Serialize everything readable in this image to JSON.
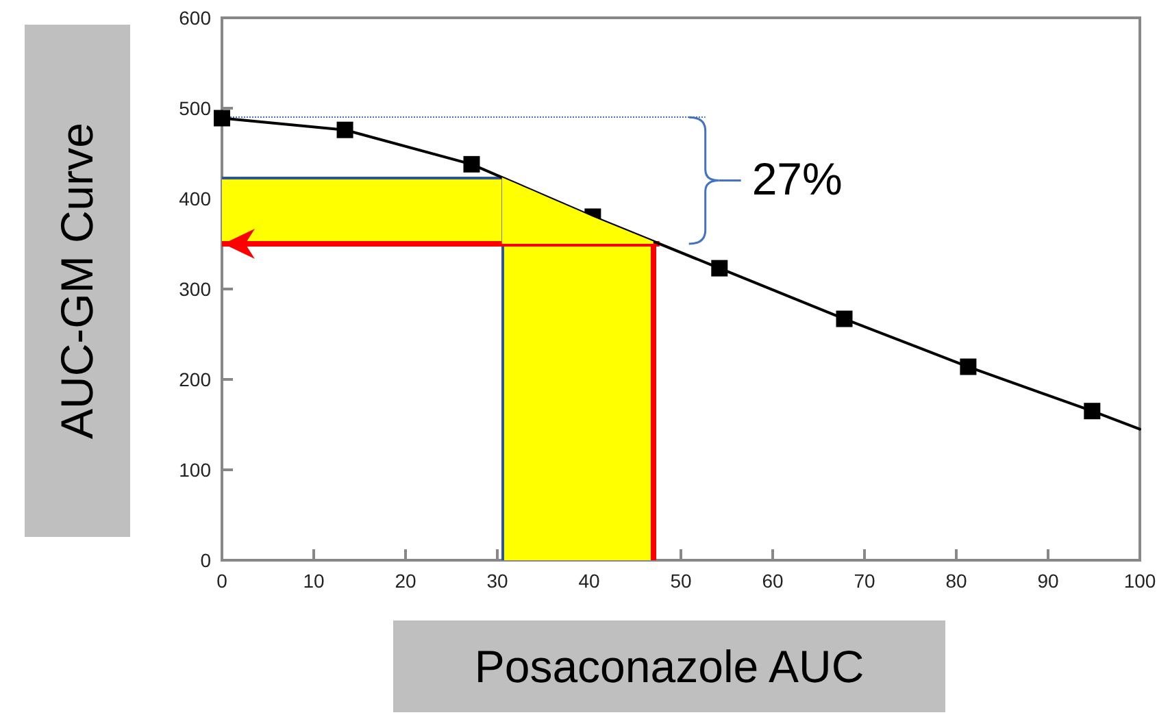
{
  "chart_data": {
    "type": "line",
    "xlabel": "Posaconazole AUC",
    "ylabel": "AUC-GM Curve",
    "series": [
      {
        "type": "scatter",
        "color": "#000000",
        "marker": "square",
        "x": [
          0,
          13.4,
          27.2,
          40.4,
          54.2,
          67.8,
          81.3,
          94.8
        ],
        "values": [
          489,
          476,
          438,
          380,
          323,
          267,
          214,
          165
        ]
      },
      {
        "color": "#000000",
        "marker": "none",
        "x": [
          0,
          13.4,
          27.2,
          40.4,
          54.2,
          67.8,
          81.3,
          94.8,
          100
        ],
        "values": [
          489,
          476,
          438,
          380,
          323,
          267,
          214,
          165,
          145
        ]
      }
    ],
    "xlim": [
      0,
      100
    ],
    "xticks": [
      0,
      10,
      20,
      30,
      40,
      50,
      60,
      70,
      80,
      90,
      100
    ],
    "ylim": [
      0,
      600
    ],
    "yticks": [
      0,
      100,
      200,
      300,
      400,
      500,
      600
    ],
    "grid": false,
    "ref_lines": [
      {
        "axis": "y",
        "value": 490,
        "color": "#4472c4",
        "line_style": "dotted"
      },
      {
        "axis": "y",
        "value": 423,
        "color": "#2f5597",
        "line_style": "solid"
      },
      {
        "axis": "x",
        "value": 30.5,
        "color": "#2f5597",
        "line_style": "solid"
      },
      {
        "axis": "y",
        "value": 350,
        "color": "#ff0000",
        "line_style": "solid"
      },
      {
        "axis": "x",
        "value": 47,
        "color": "#ff0000",
        "line_style": "solid"
      }
    ],
    "bands": [
      {
        "axis": "x",
        "from": 30.5,
        "to": 47,
        "color": "#ffff00"
      },
      {
        "axis": "y",
        "from": 350,
        "to": 423,
        "color": "#ffff00"
      }
    ],
    "annotations": [
      "27%"
    ]
  }
}
